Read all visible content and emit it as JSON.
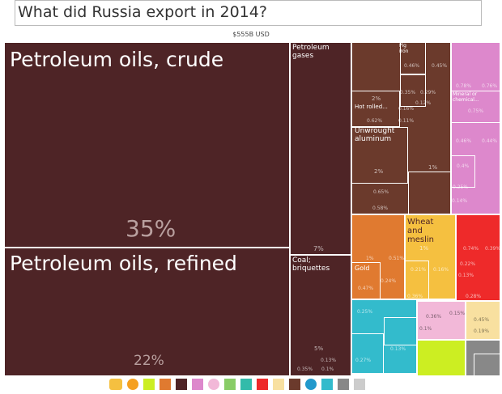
{
  "header": {
    "title": "What did Russia export in 2014?",
    "total": "$555B USD"
  },
  "labels": [
    "Petroleum oils, crude",
    "35%",
    "Petroleum oils, refined",
    "22%",
    "Petroleum gases",
    "7%",
    "Coal; briquettes",
    "5%",
    "0.35%",
    "0.13%",
    "0.1%",
    "Pig iron",
    "0.46%",
    "0.45%",
    "0.35%",
    "0.29%",
    "2%",
    "Hot rolled...",
    "0.16%",
    "0.12%",
    "0.62%",
    "0.11%",
    "Unwrought aluminum",
    "2%",
    "1%",
    "0.65%",
    "0.58%",
    "0.78%",
    "0.76%",
    "Mineral or chemical...",
    "0.75%",
    "0.46%",
    "0.44%",
    "0.4%",
    "0.25%",
    "0.14%",
    "Wheat and meslin",
    "1%",
    "0.51%",
    "Gold",
    "0.24%",
    "0.47%",
    "1%",
    "0.21%",
    "0.16%",
    "0.36%",
    "0.74%",
    "0.39%",
    "0.22%",
    "0.13%",
    "0.28%",
    "0.25%",
    "0.13%",
    "0.27%",
    "0.36%",
    "0.15%",
    "0.1%",
    "0.45%",
    "0.19%"
  ]
}
